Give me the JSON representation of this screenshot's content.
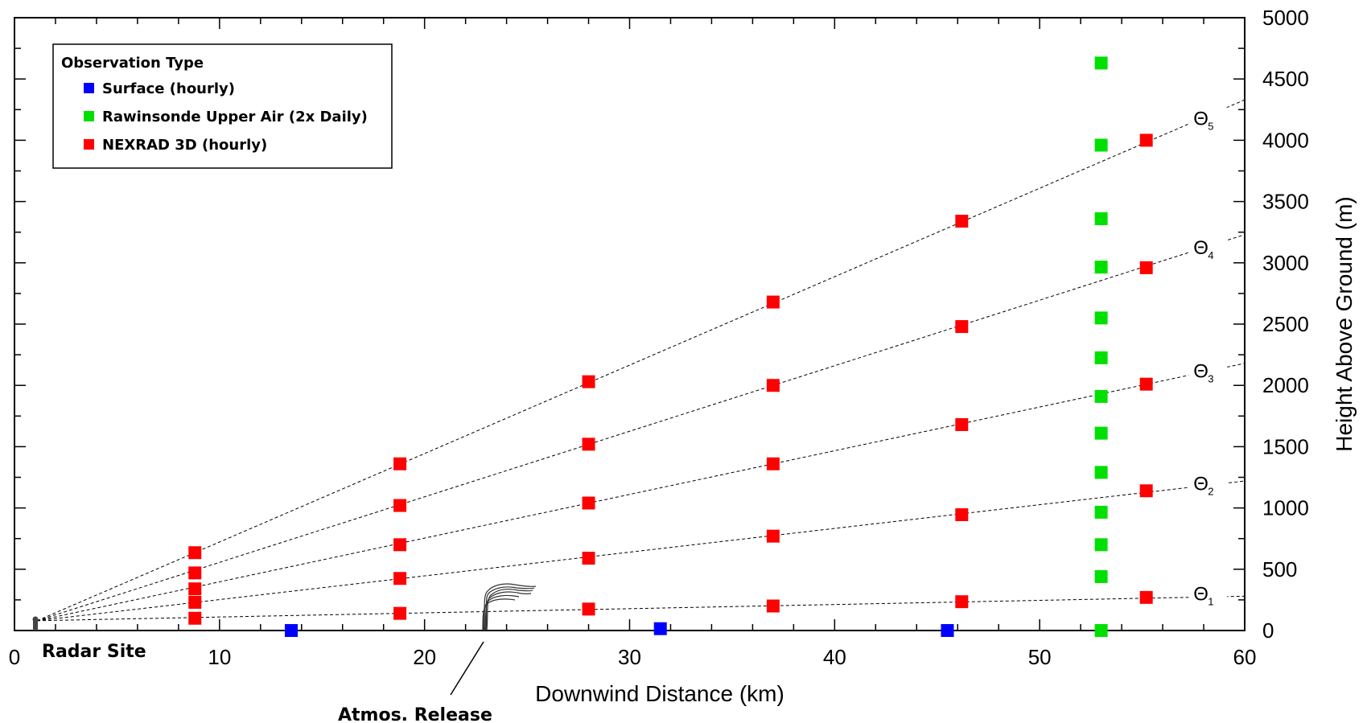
{
  "chart_data": {
    "type": "scatter",
    "xlabel": "Downwind Distance (km)",
    "ylabel": "Height Above Ground (m)",
    "xlim": [
      0,
      60
    ],
    "ylim": [
      0,
      5000
    ],
    "x_ticks": [
      "0",
      "10",
      "20",
      "30",
      "40",
      "50",
      "60"
    ],
    "y_ticks": [
      "0",
      "500",
      "1000",
      "1500",
      "2000",
      "2500",
      "3000",
      "3500",
      "4000",
      "4500",
      "5000"
    ],
    "y_axis_side": "right",
    "grid": false,
    "legend": {
      "title": "Observation Type",
      "placement": "top-left",
      "items": [
        {
          "label": "Surface (hourly)",
          "color": "#0000ff"
        },
        {
          "label": "Rawinsonde Upper Air (2x Daily)",
          "color": "#00e000"
        },
        {
          "label": "NEXRAD 3D (hourly)",
          "color": "#ff0000"
        }
      ]
    },
    "series": [
      {
        "name": "Surface (hourly)",
        "color": "#0000ff",
        "points": [
          [
            13.5,
            0
          ],
          [
            31.5,
            15
          ],
          [
            45.5,
            0
          ]
        ]
      },
      {
        "name": "Rawinsonde Upper Air (2x Daily)",
        "color": "#00e000",
        "points": [
          [
            53,
            0
          ],
          [
            53,
            440
          ],
          [
            53,
            700
          ],
          [
            53,
            965
          ],
          [
            53,
            1290
          ],
          [
            53,
            1610
          ],
          [
            53,
            1910
          ],
          [
            53,
            2225
          ],
          [
            53,
            2550
          ],
          [
            53,
            2965
          ],
          [
            53,
            3360
          ],
          [
            53,
            3960
          ],
          [
            53,
            4630
          ]
        ]
      },
      {
        "name": "NEXRAD 3D (hourly)",
        "color": "#ff0000",
        "points": [
          [
            8.8,
            100
          ],
          [
            8.8,
            230
          ],
          [
            8.8,
            340
          ],
          [
            8.8,
            470
          ],
          [
            8.8,
            635
          ],
          [
            18.8,
            140
          ],
          [
            18.8,
            425
          ],
          [
            18.8,
            700
          ],
          [
            18.8,
            1020
          ],
          [
            18.8,
            1360
          ],
          [
            28,
            175
          ],
          [
            28,
            590
          ],
          [
            28,
            1040
          ],
          [
            28,
            1520
          ],
          [
            28,
            2030
          ],
          [
            37,
            200
          ],
          [
            37,
            770
          ],
          [
            37,
            1360
          ],
          [
            37,
            2000
          ],
          [
            37,
            2680
          ],
          [
            46.2,
            235
          ],
          [
            46.2,
            945
          ],
          [
            46.2,
            1680
          ],
          [
            46.2,
            2480
          ],
          [
            46.2,
            3340
          ],
          [
            55.2,
            270
          ],
          [
            55.2,
            1140
          ],
          [
            55.2,
            2010
          ],
          [
            55.2,
            2960
          ],
          [
            55.2,
            4000
          ]
        ]
      }
    ],
    "radar_beams": {
      "origin": [
        1.1,
        80
      ],
      "lines": [
        {
          "label": "Θ",
          "sub": "1",
          "end": [
            60,
            280
          ]
        },
        {
          "label": "Θ",
          "sub": "2",
          "end": [
            60,
            1220
          ]
        },
        {
          "label": "Θ",
          "sub": "3",
          "end": [
            60,
            2180
          ]
        },
        {
          "label": "Θ",
          "sub": "4",
          "end": [
            60,
            3230
          ]
        },
        {
          "label": "Θ",
          "sub": "5",
          "end": [
            60,
            4330
          ]
        }
      ]
    },
    "annotations": {
      "radar_site": "Radar Site",
      "release": "Atmos. Release"
    }
  }
}
